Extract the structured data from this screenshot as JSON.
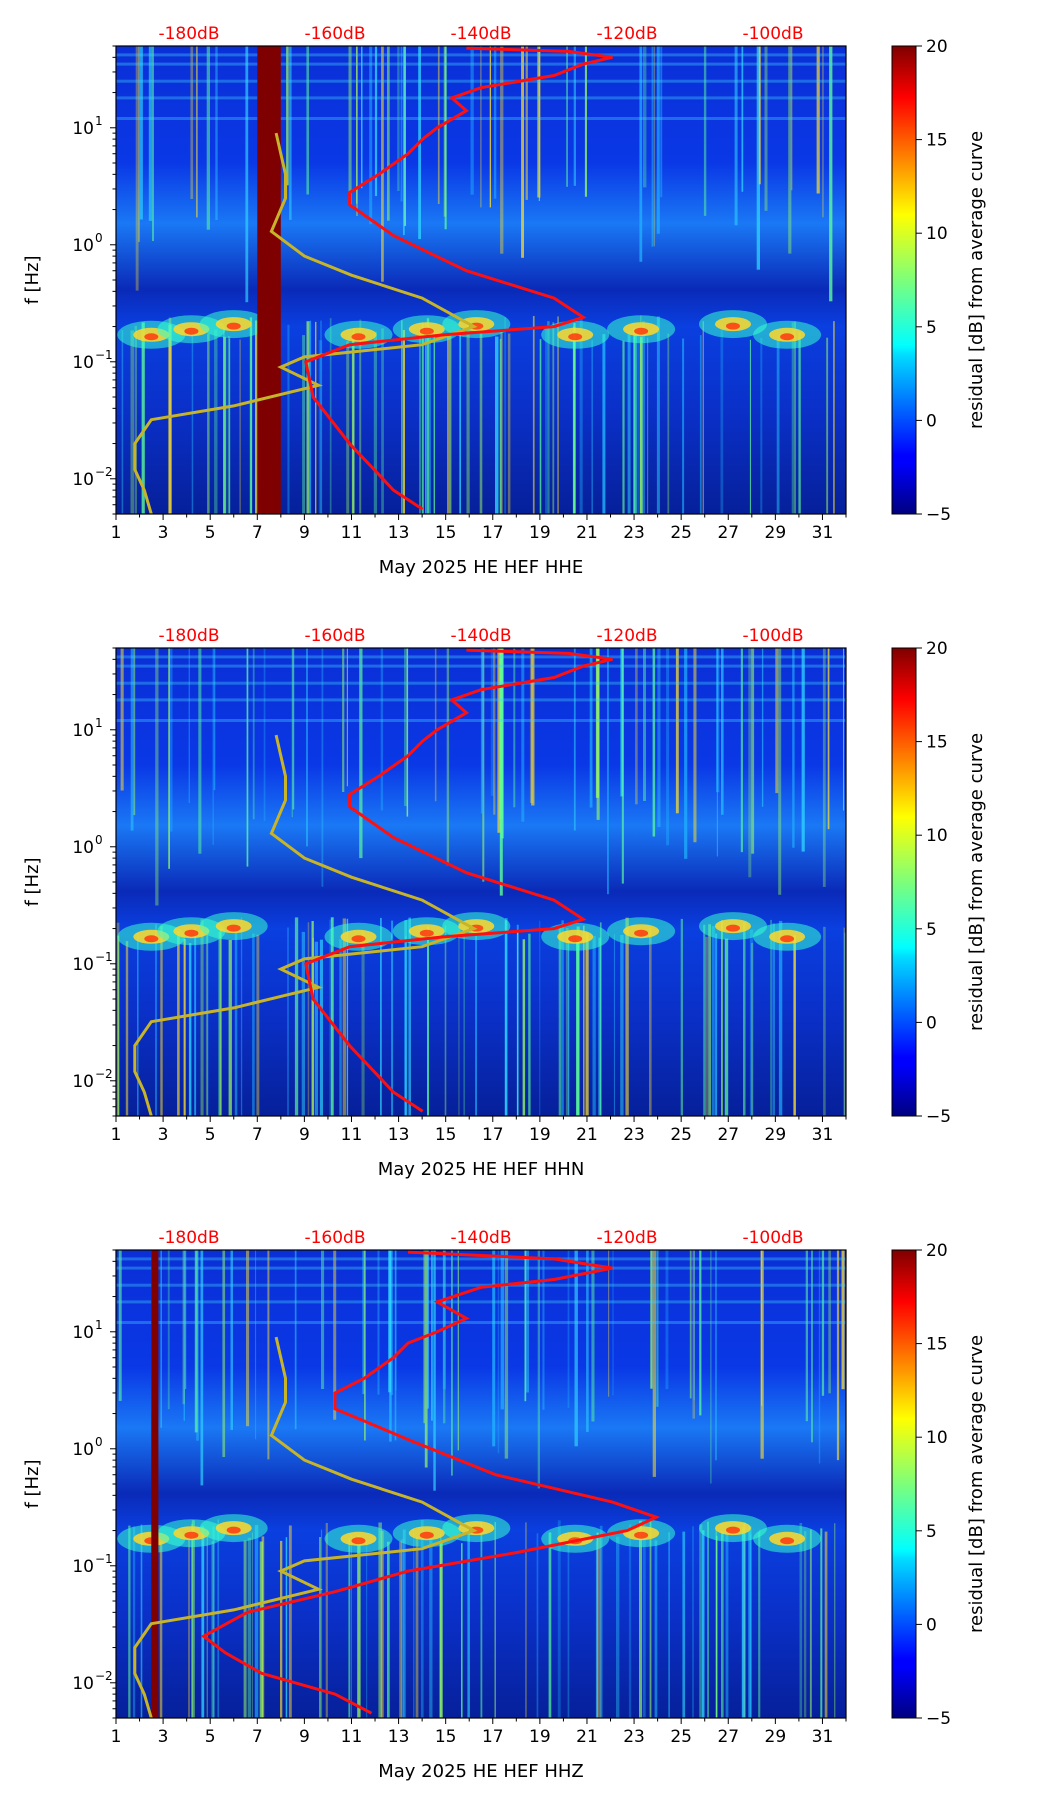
{
  "chart_data": [
    {
      "type": "heatmap",
      "channel": "HHE",
      "xlabel": "May 2025 HE HEF  HHE",
      "ylabel": "f [Hz]",
      "colorbar_label": "residual [dB] from average curve",
      "x_ticks": [
        "1",
        "3",
        "5",
        "7",
        "9",
        "11",
        "13",
        "15",
        "17",
        "19",
        "21",
        "23",
        "25",
        "27",
        "29",
        "31"
      ],
      "xlim": [
        1,
        32
      ],
      "ylim": [
        0.005,
        50
      ],
      "y_ticks": [
        {
          "value": 0.01,
          "base": "10",
          "exp": "−2"
        },
        {
          "value": 0.1,
          "base": "10",
          "exp": "−1"
        },
        {
          "value": 1,
          "base": "10",
          "exp": "0"
        },
        {
          "value": 10,
          "base": "10",
          "exp": "1"
        }
      ],
      "db_top_axis": [
        "-180dB",
        "-160dB",
        "-140dB",
        "-120dB",
        "-100dB"
      ],
      "db_range": [
        -190,
        -90
      ],
      "colorbar_range": [
        -5,
        20
      ],
      "colorbar_ticks": [
        "−5",
        "0",
        "5",
        "10",
        "15",
        "20"
      ],
      "data_gap": [
        7.0,
        8.0
      ],
      "red_curve_db_vs_freq": [
        [
          -148,
          0.0055
        ],
        [
          -152,
          0.008
        ],
        [
          -158,
          0.02
        ],
        [
          -163,
          0.05
        ],
        [
          -164,
          0.1
        ],
        [
          -158,
          0.14
        ],
        [
          -145,
          0.17
        ],
        [
          -130,
          0.2
        ],
        [
          -126,
          0.24
        ],
        [
          -130,
          0.35
        ],
        [
          -142,
          0.6
        ],
        [
          -152,
          1.2
        ],
        [
          -158,
          2.2
        ],
        [
          -158,
          2.8
        ],
        [
          -154,
          4
        ],
        [
          -150,
          6
        ],
        [
          -148,
          8
        ],
        [
          -146,
          10
        ],
        [
          -142,
          14
        ],
        [
          -144,
          18
        ],
        [
          -140,
          22
        ],
        [
          -130,
          28
        ],
        [
          -126,
          35
        ],
        [
          -122,
          40
        ],
        [
          -128,
          45
        ],
        [
          -142,
          48
        ]
      ],
      "yellow_curve_day_vs_freq": [
        [
          2.5,
          0.005
        ],
        [
          2.2,
          0.008
        ],
        [
          1.8,
          0.012
        ],
        [
          1.8,
          0.02
        ],
        [
          2.5,
          0.032
        ],
        [
          6,
          0.042
        ],
        [
          9.6,
          0.063
        ],
        [
          8,
          0.09
        ],
        [
          9,
          0.11
        ],
        [
          14,
          0.14
        ],
        [
          16.2,
          0.2
        ],
        [
          14,
          0.35
        ],
        [
          11,
          0.55
        ],
        [
          9,
          0.8
        ],
        [
          7.6,
          1.3
        ],
        [
          8.2,
          2.5
        ],
        [
          8.2,
          4
        ],
        [
          7.8,
          9
        ]
      ]
    },
    {
      "type": "heatmap",
      "channel": "HHN",
      "xlabel": "May 2025 HE HEF  HHN",
      "ylabel": "f [Hz]",
      "colorbar_label": "residual [dB] from average curve",
      "x_ticks": [
        "1",
        "3",
        "5",
        "7",
        "9",
        "11",
        "13",
        "15",
        "17",
        "19",
        "21",
        "23",
        "25",
        "27",
        "29",
        "31"
      ],
      "xlim": [
        1,
        32
      ],
      "ylim": [
        0.005,
        50
      ],
      "y_ticks": [
        {
          "value": 0.01,
          "base": "10",
          "exp": "−2"
        },
        {
          "value": 0.1,
          "base": "10",
          "exp": "−1"
        },
        {
          "value": 1,
          "base": "10",
          "exp": "0"
        },
        {
          "value": 10,
          "base": "10",
          "exp": "1"
        }
      ],
      "db_top_axis": [
        "-180dB",
        "-160dB",
        "-140dB",
        "-120dB",
        "-100dB"
      ],
      "db_range": [
        -190,
        -90
      ],
      "colorbar_range": [
        -5,
        20
      ],
      "colorbar_ticks": [
        "−5",
        "0",
        "5",
        "10",
        "15",
        "20"
      ],
      "data_gap": null,
      "red_curve_db_vs_freq": [
        [
          -148,
          0.0055
        ],
        [
          -152,
          0.008
        ],
        [
          -158,
          0.02
        ],
        [
          -163,
          0.05
        ],
        [
          -164,
          0.1
        ],
        [
          -158,
          0.14
        ],
        [
          -145,
          0.17
        ],
        [
          -130,
          0.2
        ],
        [
          -126,
          0.24
        ],
        [
          -130,
          0.35
        ],
        [
          -142,
          0.6
        ],
        [
          -152,
          1.2
        ],
        [
          -158,
          2.2
        ],
        [
          -158,
          2.8
        ],
        [
          -154,
          4
        ],
        [
          -150,
          6
        ],
        [
          -148,
          8
        ],
        [
          -146,
          10
        ],
        [
          -142,
          14
        ],
        [
          -144,
          18
        ],
        [
          -140,
          22
        ],
        [
          -130,
          28
        ],
        [
          -126,
          35
        ],
        [
          -122,
          40
        ],
        [
          -128,
          45
        ],
        [
          -142,
          48
        ]
      ],
      "yellow_curve_day_vs_freq": [
        [
          2.5,
          0.005
        ],
        [
          2.2,
          0.008
        ],
        [
          1.8,
          0.012
        ],
        [
          1.8,
          0.02
        ],
        [
          2.5,
          0.032
        ],
        [
          6,
          0.042
        ],
        [
          9.6,
          0.063
        ],
        [
          8,
          0.09
        ],
        [
          9,
          0.11
        ],
        [
          14,
          0.14
        ],
        [
          16.2,
          0.2
        ],
        [
          14,
          0.35
        ],
        [
          11,
          0.55
        ],
        [
          9,
          0.8
        ],
        [
          7.6,
          1.3
        ],
        [
          8.2,
          2.5
        ],
        [
          8.2,
          4
        ],
        [
          7.8,
          9
        ]
      ]
    },
    {
      "type": "heatmap",
      "channel": "HHZ",
      "xlabel": "May 2025 HE HEF  HHZ",
      "ylabel": "f [Hz]",
      "colorbar_label": "residual [dB] from average curve",
      "x_ticks": [
        "1",
        "3",
        "5",
        "7",
        "9",
        "11",
        "13",
        "15",
        "17",
        "19",
        "21",
        "23",
        "25",
        "27",
        "29",
        "31"
      ],
      "xlim": [
        1,
        32
      ],
      "ylim": [
        0.005,
        50
      ],
      "y_ticks": [
        {
          "value": 0.01,
          "base": "10",
          "exp": "−2"
        },
        {
          "value": 0.1,
          "base": "10",
          "exp": "−1"
        },
        {
          "value": 1,
          "base": "10",
          "exp": "0"
        },
        {
          "value": 10,
          "base": "10",
          "exp": "1"
        }
      ],
      "db_top_axis": [
        "-180dB",
        "-160dB",
        "-140dB",
        "-120dB",
        "-100dB"
      ],
      "db_range": [
        -190,
        -90
      ],
      "colorbar_range": [
        -5,
        20
      ],
      "colorbar_ticks": [
        "−5",
        "0",
        "5",
        "10",
        "15",
        "20"
      ],
      "data_gap": [
        2.5,
        2.8
      ],
      "red_curve_db_vs_freq": [
        [
          -155,
          0.0055
        ],
        [
          -160,
          0.008
        ],
        [
          -170,
          0.012
        ],
        [
          -175,
          0.018
        ],
        [
          -178,
          0.025
        ],
        [
          -172,
          0.04
        ],
        [
          -160,
          0.06
        ],
        [
          -150,
          0.09
        ],
        [
          -135,
          0.13
        ],
        [
          -120,
          0.2
        ],
        [
          -116,
          0.26
        ],
        [
          -122,
          0.35
        ],
        [
          -138,
          0.6
        ],
        [
          -150,
          1.2
        ],
        [
          -160,
          2.2
        ],
        [
          -160,
          3
        ],
        [
          -156,
          4
        ],
        [
          -152,
          6
        ],
        [
          -150,
          8
        ],
        [
          -146,
          10
        ],
        [
          -142,
          13
        ],
        [
          -146,
          18
        ],
        [
          -140,
          24
        ],
        [
          -130,
          28
        ],
        [
          -122,
          35
        ],
        [
          -130,
          42
        ],
        [
          -150,
          48
        ]
      ],
      "yellow_curve_day_vs_freq": [
        [
          2.5,
          0.005
        ],
        [
          2.2,
          0.008
        ],
        [
          1.8,
          0.012
        ],
        [
          1.8,
          0.02
        ],
        [
          2.5,
          0.032
        ],
        [
          6,
          0.042
        ],
        [
          9.6,
          0.063
        ],
        [
          8,
          0.09
        ],
        [
          9,
          0.11
        ],
        [
          14,
          0.14
        ],
        [
          16.2,
          0.2
        ],
        [
          14,
          0.35
        ],
        [
          11,
          0.55
        ],
        [
          9,
          0.8
        ],
        [
          7.6,
          1.3
        ],
        [
          8.2,
          2.5
        ],
        [
          8.2,
          4
        ],
        [
          7.8,
          9
        ]
      ]
    }
  ]
}
